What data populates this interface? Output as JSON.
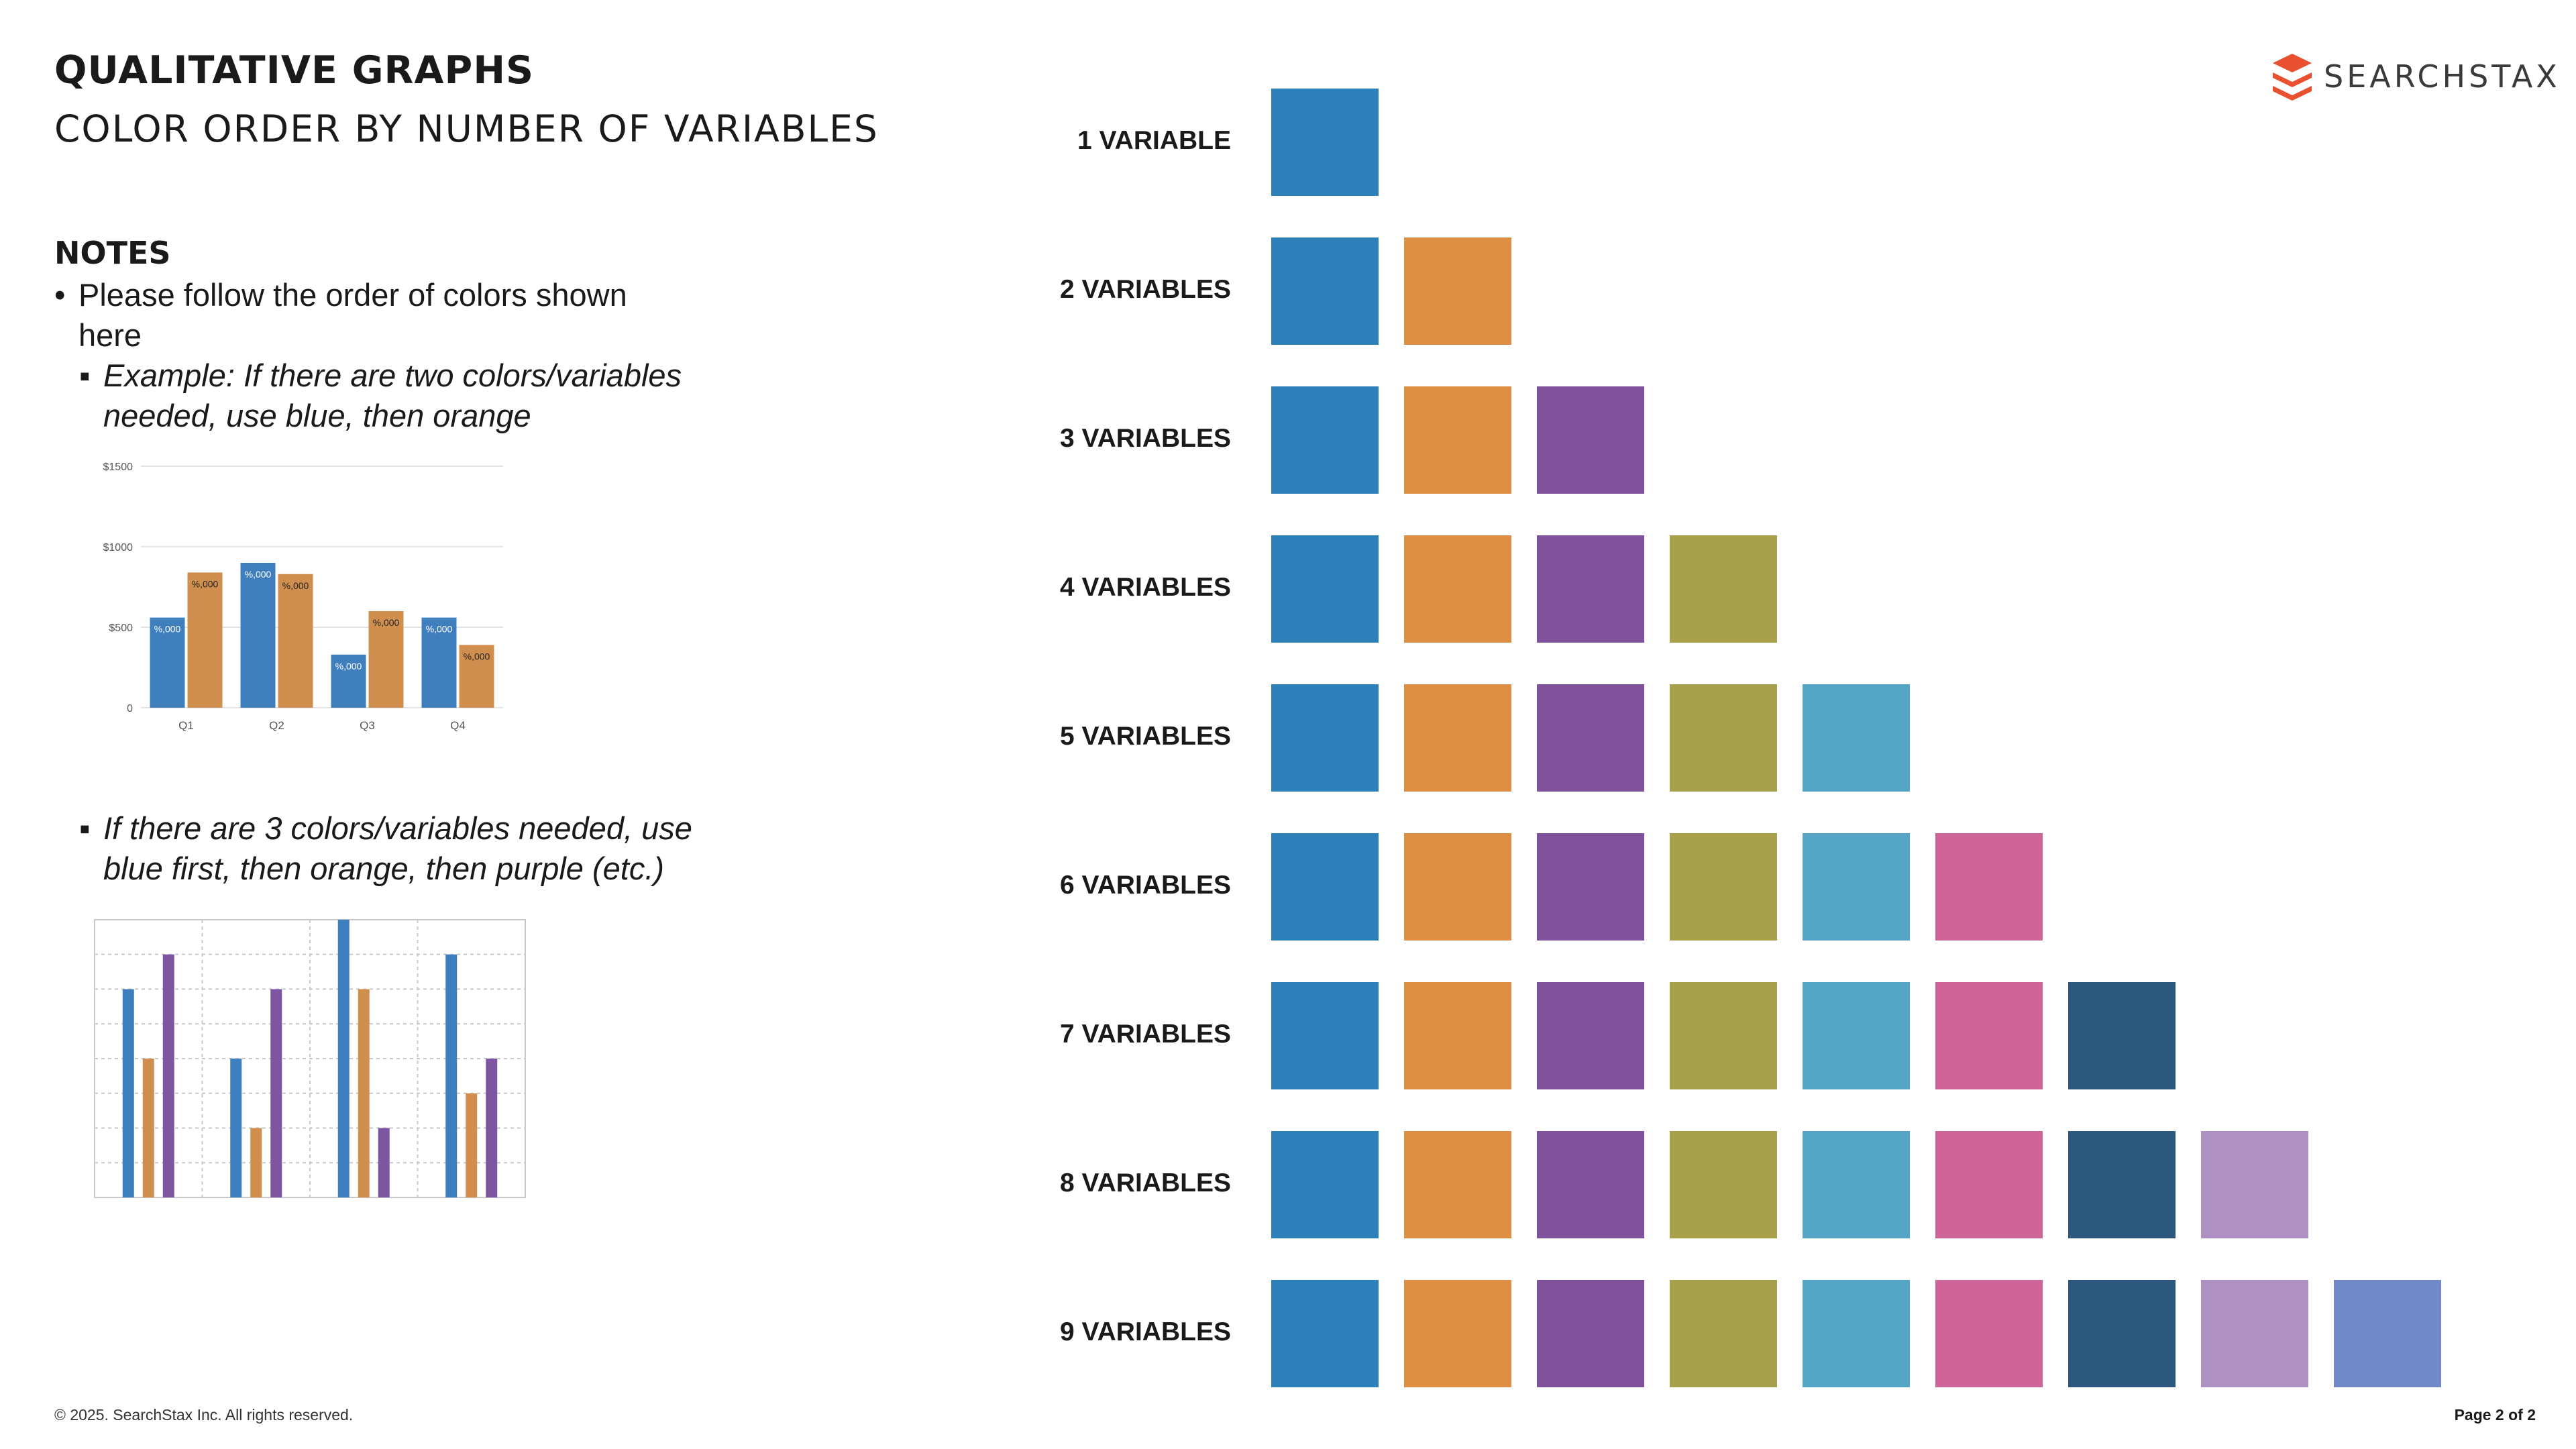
{
  "header": {
    "title": "QUALITATIVE GRAPHS",
    "subtitle": "COLOR ORDER BY NUMBER OF VARIABLES"
  },
  "logo": {
    "text": "SEARCHSTAX",
    "color": "#e8502f"
  },
  "notes": {
    "heading": "NOTES",
    "bullet_1": "Please follow the order of colors shown here",
    "bullet_2": "Example: If there are two colors/variables needed, use blue, then orange",
    "bullet_3": "If there are 3 colors/variables needed, use blue first, then orange, then purple (etc.)"
  },
  "palette": [
    "#2e80ba",
    "#de8f43",
    "#81529c",
    "#a5a049",
    "#54a5c6",
    "#cf6498",
    "#2b587c",
    "#ae90c3",
    "#7289c8"
  ],
  "rows": [
    {
      "label": "1 VARIABLE",
      "count": 1
    },
    {
      "label": "2 VARIABLES",
      "count": 2
    },
    {
      "label": "3 VARIABLES",
      "count": 3
    },
    {
      "label": "4 VARIABLES",
      "count": 4
    },
    {
      "label": "5 VARIABLES",
      "count": 5
    },
    {
      "label": "6 VARIABLES",
      "count": 6
    },
    {
      "label": "7 VARIABLES",
      "count": 7
    },
    {
      "label": "8 VARIABLES",
      "count": 8
    },
    {
      "label": "9 VARIABLES",
      "count": 9
    }
  ],
  "chart_data": [
    {
      "type": "bar",
      "categories": [
        "Q1",
        "Q2",
        "Q3",
        "Q4"
      ],
      "ytick_labels": [
        "0",
        "$500",
        "$1000",
        "$1500"
      ],
      "ylim": [
        0,
        1500
      ],
      "series": [
        {
          "values": [
            560,
            900,
            330,
            560
          ],
          "color": "#3f7fbe"
        },
        {
          "values": [
            840,
            830,
            600,
            390
          ],
          "color": "#d08f4e"
        }
      ],
      "data_label": "%,000"
    },
    {
      "type": "bar",
      "categories": [
        "",
        "",
        "",
        ""
      ],
      "ylim": [
        0,
        8
      ],
      "grid": true,
      "series": [
        {
          "values": [
            6,
            4,
            8,
            7
          ],
          "color": "#3f7fbe"
        },
        {
          "values": [
            4,
            2,
            6,
            3
          ],
          "color": "#d08f4e"
        },
        {
          "values": [
            7,
            6,
            2,
            4
          ],
          "color": "#7d55a0"
        }
      ]
    }
  ],
  "footer": {
    "copyright": "© 2025. SearchStax Inc. All rights reserved.",
    "page": "Page 2 of 2"
  }
}
